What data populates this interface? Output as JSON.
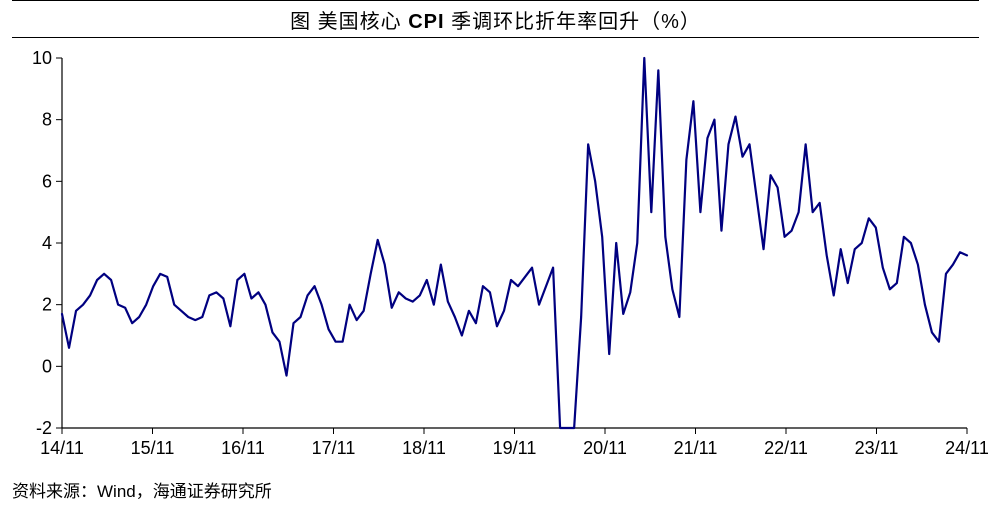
{
  "title": {
    "prefix": "图 美国核心 ",
    "bold": "CPI",
    "suffix": " 季调环比折年率回升（%）",
    "fontsize": 20
  },
  "source": {
    "label": "资料来源：",
    "wind": "Wind",
    "rest": "，海通证券研究所",
    "fontsize": 17
  },
  "chart": {
    "type": "line",
    "background_color": "#ffffff",
    "line_color": "#000080",
    "line_width": 2.2,
    "axis_color": "#000000",
    "tick_length": 6,
    "ylim": [
      -2,
      10
    ],
    "ytick_step": 2,
    "yticks": [
      -2,
      0,
      2,
      4,
      6,
      8,
      10
    ],
    "x_categories": [
      "14/11",
      "15/11",
      "16/11",
      "17/11",
      "18/11",
      "19/11",
      "20/11",
      "21/11",
      "22/11",
      "23/11",
      "24/11"
    ],
    "x_positions_months": [
      0,
      12,
      24,
      36,
      48,
      60,
      72,
      84,
      96,
      108,
      120
    ],
    "label_fontsize": 18,
    "grid": false,
    "values": [
      1.7,
      0.6,
      1.8,
      2.0,
      2.3,
      2.8,
      3.0,
      2.8,
      2.0,
      1.9,
      1.4,
      1.6,
      2.0,
      2.6,
      3.0,
      2.9,
      2.0,
      1.8,
      1.6,
      1.5,
      1.6,
      2.3,
      2.4,
      2.2,
      1.3,
      2.8,
      3.0,
      2.2,
      2.4,
      2.0,
      1.1,
      0.8,
      -0.3,
      1.4,
      1.6,
      2.3,
      2.6,
      2.0,
      1.2,
      0.8,
      0.8,
      2.0,
      1.5,
      1.8,
      3.0,
      4.1,
      3.3,
      1.9,
      2.4,
      2.2,
      2.1,
      2.3,
      2.8,
      2.0,
      3.3,
      2.1,
      1.6,
      1.0,
      1.8,
      1.4,
      2.6,
      2.4,
      1.3,
      1.8,
      2.8,
      2.6,
      2.9,
      3.2,
      2.0,
      2.6,
      3.2,
      -2.0,
      -2.0,
      -2.0,
      1.6,
      7.2,
      6.0,
      4.2,
      0.4,
      4.0,
      1.7,
      2.4,
      4.0,
      10.0,
      5.0,
      9.6,
      4.2,
      2.5,
      1.6,
      6.7,
      8.6,
      5.0,
      7.4,
      8.0,
      4.4,
      7.2,
      8.1,
      6.8,
      7.2,
      5.5,
      3.8,
      6.2,
      5.8,
      4.2,
      4.4,
      5.0,
      7.2,
      5.0,
      5.3,
      3.6,
      2.3,
      3.8,
      2.7,
      3.8,
      4.0,
      4.8,
      4.5,
      3.2,
      2.5,
      2.7,
      4.2,
      4.0,
      3.3,
      2.0,
      1.1,
      0.8,
      3.0,
      3.3,
      3.7,
      3.6
    ]
  }
}
